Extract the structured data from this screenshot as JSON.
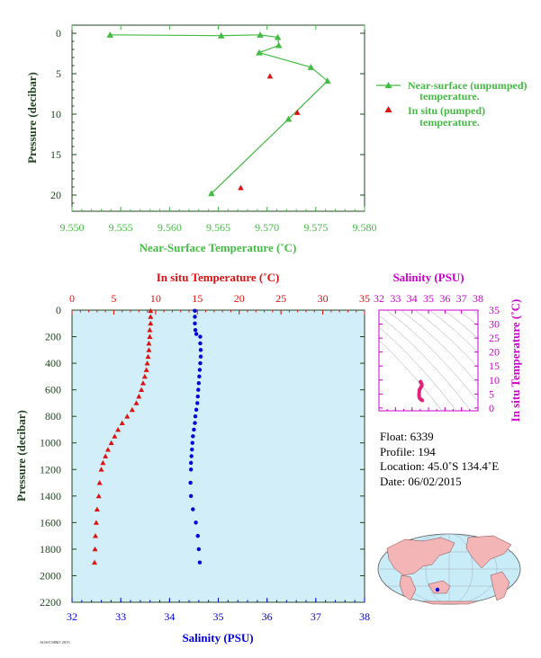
{
  "colors": {
    "near_surface": "#44bb44",
    "in_situ_temp": "#dd1111",
    "salinity": "#0000dd",
    "ts_salinity": "#cc00cc",
    "axis_dark": "#224422",
    "plot_bg": "#d2eef8",
    "ts_line": "#e0227a",
    "land": "#f3b5b5",
    "ocean": "#c8ecf8"
  },
  "chart_data": [
    {
      "type": "line",
      "xlabel": "Near-Surface Temperature (˚C)",
      "ylabel": "Pressure (decibar)",
      "xlim": [
        9.55,
        9.58
      ],
      "ylim": [
        22,
        -1
      ],
      "xticks": [
        "9.550",
        "9.555",
        "9.560",
        "9.565",
        "9.570",
        "9.575",
        "9.580"
      ],
      "yticks": [
        "0",
        "5",
        "10",
        "15",
        "20"
      ],
      "legend_position": "right",
      "series": [
        {
          "name": "Near-surface (unpumped) temperature.",
          "marker": "triangle",
          "points": [
            [
              9.5539,
              0.2
            ],
            [
              9.5653,
              0.3
            ],
            [
              9.5693,
              0.2
            ],
            [
              9.5711,
              0.5
            ],
            [
              9.5712,
              1.5
            ],
            [
              9.5692,
              2.4
            ],
            [
              9.5745,
              4.2
            ],
            [
              9.5762,
              5.9
            ],
            [
              9.5722,
              10.6
            ],
            [
              9.5643,
              19.8
            ]
          ]
        },
        {
          "name": "In situ (pumped) temperature.",
          "marker": "triangle",
          "points": [
            [
              9.5703,
              5.3
            ],
            [
              9.5731,
              9.8
            ],
            [
              9.5673,
              19.1
            ]
          ]
        }
      ]
    },
    {
      "type": "scatter",
      "x_top_label": "In situ Temperature (˚C)",
      "x_bottom_label": "Salinity (PSU)",
      "ylabel": "Pressure (decibar)",
      "temp_xlim": [
        0,
        35
      ],
      "sal_xlim": [
        32,
        38
      ],
      "ylim": [
        2200,
        0
      ],
      "temp_ticks": [
        "0",
        "5",
        "10",
        "15",
        "20",
        "25",
        "30",
        "35"
      ],
      "sal_ticks": [
        "32",
        "33",
        "34",
        "35",
        "36",
        "37",
        "38"
      ],
      "pressure_ticks": [
        "0",
        "200",
        "400",
        "600",
        "800",
        "1000",
        "1200",
        "1400",
        "1600",
        "1800",
        "2000",
        "2200"
      ],
      "temperature_profile": [
        [
          9.4,
          5
        ],
        [
          9.4,
          50
        ],
        [
          9.4,
          100
        ],
        [
          9.3,
          150
        ],
        [
          9.3,
          200
        ],
        [
          9.2,
          250
        ],
        [
          9.2,
          300
        ],
        [
          9.1,
          350
        ],
        [
          9.0,
          400
        ],
        [
          8.9,
          450
        ],
        [
          8.7,
          500
        ],
        [
          8.5,
          550
        ],
        [
          8.3,
          600
        ],
        [
          8.0,
          650
        ],
        [
          7.7,
          700
        ],
        [
          7.2,
          750
        ],
        [
          6.6,
          800
        ],
        [
          6.0,
          850
        ],
        [
          5.5,
          900
        ],
        [
          5.1,
          950
        ],
        [
          4.7,
          1000
        ],
        [
          4.3,
          1050
        ],
        [
          4.0,
          1100
        ],
        [
          3.7,
          1150
        ],
        [
          3.5,
          1200
        ],
        [
          3.3,
          1300
        ],
        [
          3.2,
          1400
        ],
        [
          3.0,
          1500
        ],
        [
          2.9,
          1600
        ],
        [
          2.8,
          1700
        ],
        [
          2.75,
          1800
        ],
        [
          2.7,
          1900
        ]
      ],
      "salinity_profile": [
        [
          34.52,
          5
        ],
        [
          34.52,
          50
        ],
        [
          34.52,
          100
        ],
        [
          34.53,
          150
        ],
        [
          34.55,
          180
        ],
        [
          34.63,
          200
        ],
        [
          34.63,
          250
        ],
        [
          34.64,
          300
        ],
        [
          34.64,
          350
        ],
        [
          34.63,
          400
        ],
        [
          34.62,
          450
        ],
        [
          34.61,
          500
        ],
        [
          34.6,
          550
        ],
        [
          34.59,
          600
        ],
        [
          34.58,
          650
        ],
        [
          34.57,
          700
        ],
        [
          34.55,
          750
        ],
        [
          34.53,
          800
        ],
        [
          34.52,
          850
        ],
        [
          34.5,
          900
        ],
        [
          34.48,
          950
        ],
        [
          34.47,
          1000
        ],
        [
          34.46,
          1050
        ],
        [
          34.45,
          1100
        ],
        [
          34.44,
          1150
        ],
        [
          34.44,
          1200
        ],
        [
          34.43,
          1300
        ],
        [
          34.44,
          1400
        ],
        [
          34.48,
          1500
        ],
        [
          34.54,
          1600
        ],
        [
          34.58,
          1700
        ],
        [
          34.6,
          1800
        ],
        [
          34.62,
          1900
        ]
      ]
    },
    {
      "type": "scatter",
      "title": "Salinity (PSU)",
      "ylabel": "In situ Temperature (˚C)",
      "xlim": [
        32,
        38
      ],
      "ylim": [
        -1,
        35
      ],
      "xticks": [
        "32",
        "33",
        "34",
        "35",
        "36",
        "37",
        "38"
      ],
      "yticks": [
        "0",
        "5",
        "10",
        "15",
        "20",
        "25",
        "30",
        "35"
      ],
      "points": [
        [
          34.52,
          9.4
        ],
        [
          34.52,
          9.3
        ],
        [
          34.55,
          9.0
        ],
        [
          34.6,
          8.5
        ],
        [
          34.6,
          8.0
        ],
        [
          34.55,
          7.5
        ],
        [
          34.5,
          7.0
        ],
        [
          34.45,
          6.5
        ],
        [
          34.44,
          6.0
        ],
        [
          34.44,
          5.5
        ],
        [
          34.43,
          5.0
        ],
        [
          34.43,
          4.5
        ],
        [
          34.44,
          4.0
        ],
        [
          34.46,
          3.6
        ],
        [
          34.5,
          3.3
        ],
        [
          34.55,
          3.0
        ],
        [
          34.6,
          2.8
        ],
        [
          34.62,
          2.7
        ]
      ]
    }
  ],
  "float_info": {
    "float": "Float:  6339",
    "profile": "Profile:  194",
    "location": "Location:  45.0˚S  134.4˚E",
    "date": "Date:  06/02/2015"
  },
  "footer_tag": "AOS/CSIRO 2015"
}
